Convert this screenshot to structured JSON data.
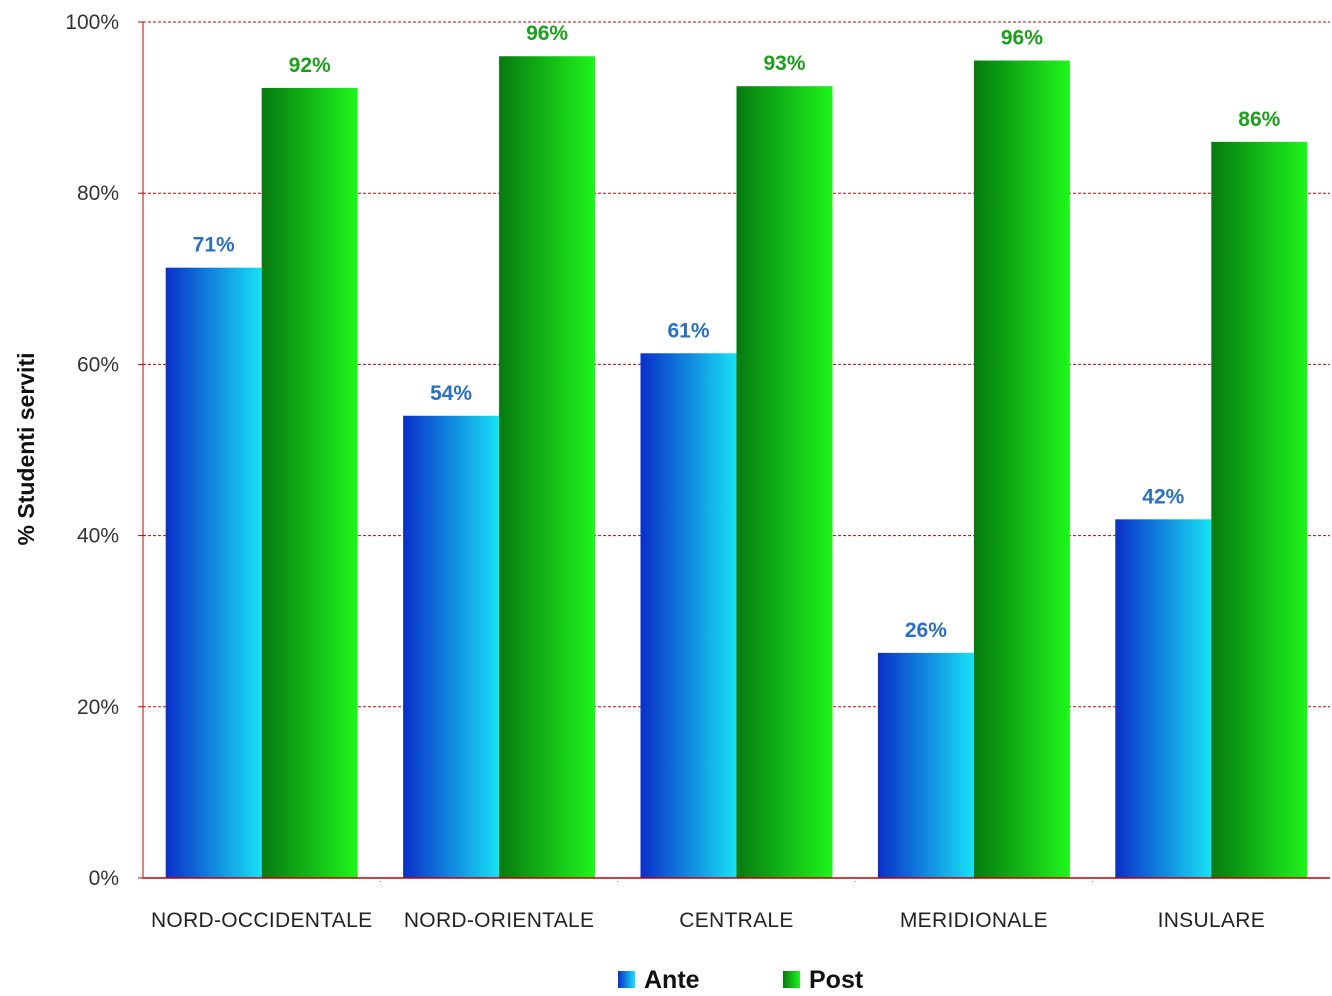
{
  "chart_data": {
    "type": "bar",
    "title": "",
    "xlabel": "",
    "ylabel": "% Studenti serviti",
    "ylim": [
      0,
      100
    ],
    "yticks": [
      "0%",
      "20%",
      "40%",
      "60%",
      "80%",
      "100%"
    ],
    "grid": "horizontal dashed",
    "legend_position": "bottom",
    "categories": [
      "NORD-OCCIDENTALE",
      "NORD-ORIENTALE",
      "CENTRALE",
      "MERIDIONALE",
      "INSULARE"
    ],
    "series": [
      {
        "name": "Ante",
        "values": [
          71.3,
          54.0,
          61.3,
          26.3,
          41.9
        ],
        "labels": [
          "71%",
          "54%",
          "61%",
          "26%",
          "42%"
        ],
        "color_dark": "#0a2fc9",
        "color_light": "#16e2f5",
        "label_color": "#2a6fc4"
      },
      {
        "name": "Post",
        "values": [
          92.3,
          96.0,
          92.5,
          95.5,
          86.0
        ],
        "labels": [
          "92%",
          "96%",
          "93%",
          "96%",
          "86%"
        ],
        "color_dark": "#067a10",
        "color_light": "#1ef51c",
        "label_color": "#1aa01a"
      }
    ],
    "colors": {
      "grid": "#c40000",
      "axis": "#c40000"
    }
  }
}
